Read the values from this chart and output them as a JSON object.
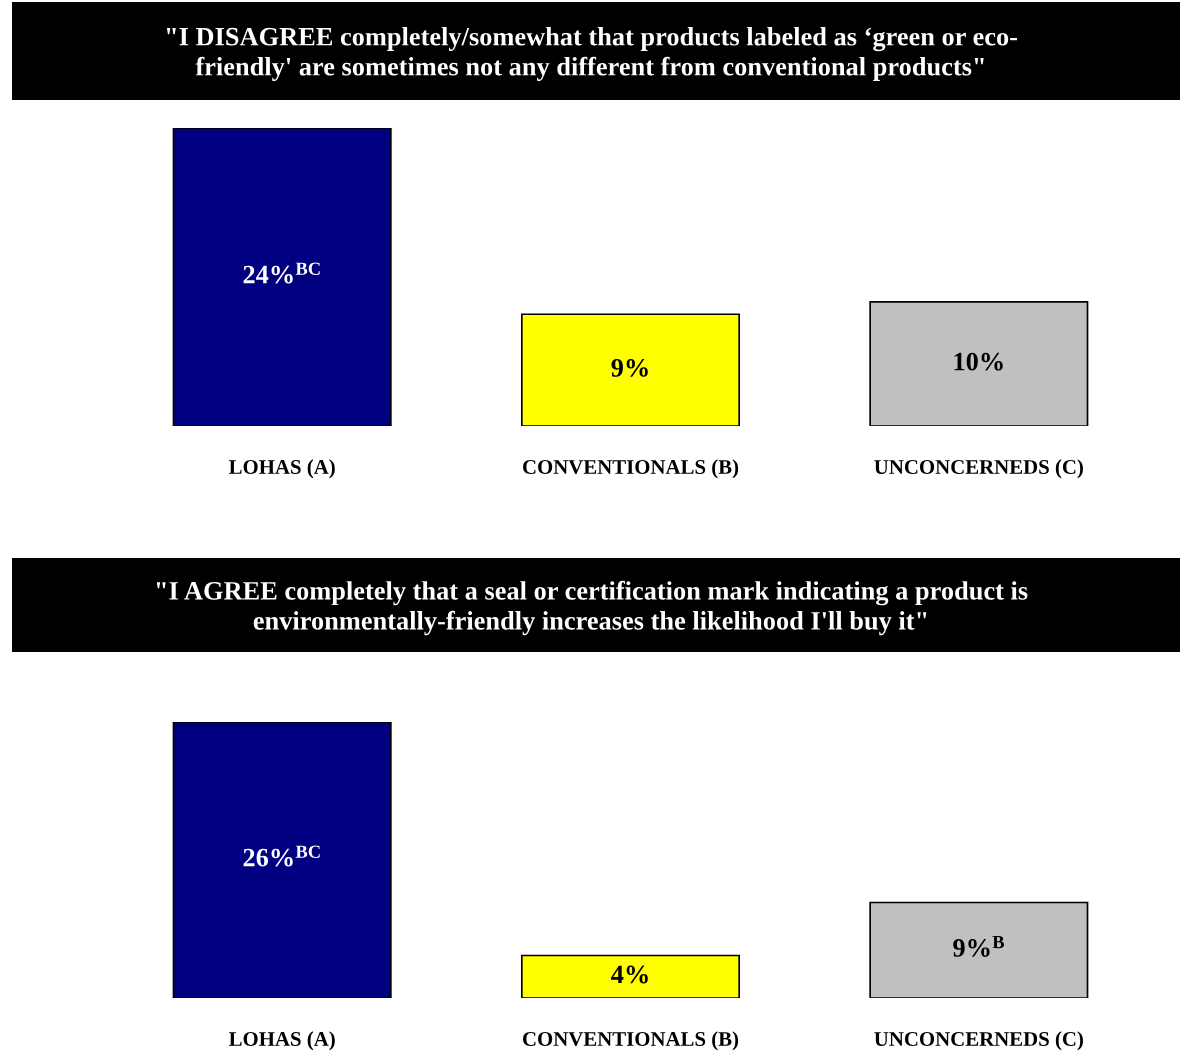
{
  "chart_data": [
    {
      "type": "bar",
      "title": "\"I DISAGREE completely/somewhat that products labeled as ‘green or eco-\nfriendly' are sometimes not any different from conventional products\"",
      "categories": [
        "LOHAS (A)",
        "CONVENTIONALS (B)",
        "UNCONCERNEDS (C)"
      ],
      "values": [
        24,
        9,
        10
      ],
      "colors": [
        "#000080",
        "#ffff00",
        "#c0c0c0"
      ],
      "value_labels": [
        "24%$^{BC}$",
        "9%",
        "10%"
      ],
      "grid": false,
      "legend": false
    },
    {
      "type": "bar",
      "title": "\"I AGREE completely that a seal or certification mark indicating a product is\nenvironmentally-friendly increases the likelihood I'll buy it\"",
      "categories": [
        "LOHAS (A)",
        "CONVENTIONALS (B)",
        "UNCONCERNEDS (C)"
      ],
      "values": [
        26,
        4,
        9
      ],
      "colors": [
        "#000080",
        "#ffff00",
        "#c0c0c0"
      ],
      "value_labels": [
        "26%$^{BC}$",
        "4%",
        "9%$^{B}$"
      ],
      "grid": false,
      "legend": false
    }
  ]
}
